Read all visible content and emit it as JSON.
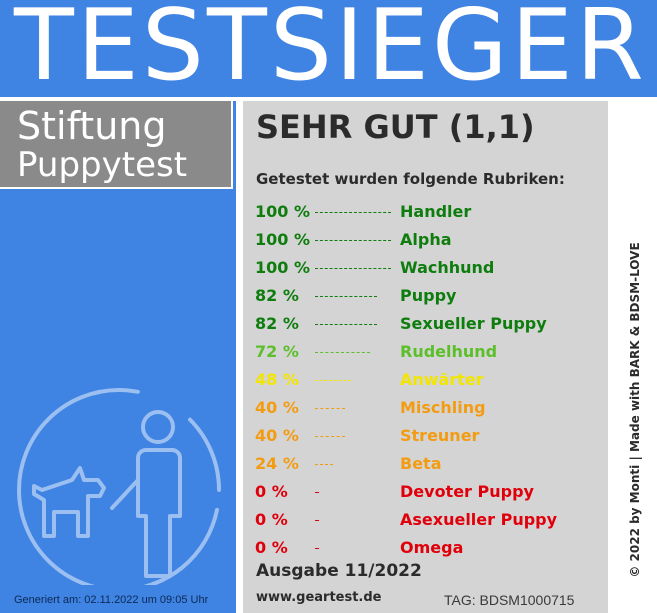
{
  "header": {
    "title": "TESTSIEGER"
  },
  "brand": {
    "line1": "Stiftung",
    "line2": "Puppytest"
  },
  "result": {
    "rating": "SEHR GUT (1,1)",
    "subheading": "Getestet wurden folgende Rubriken:",
    "rubriken": [
      {
        "percent": "100 %",
        "value": 100,
        "name": "Handler",
        "color": "#0e7d0e"
      },
      {
        "percent": "100 %",
        "value": 100,
        "name": "Alpha",
        "color": "#0e7d0e"
      },
      {
        "percent": "100 %",
        "value": 100,
        "name": "Wachhund",
        "color": "#0e7d0e"
      },
      {
        "percent": "82 %",
        "value": 82,
        "name": "Puppy",
        "color": "#0e7d0e"
      },
      {
        "percent": "82 %",
        "value": 82,
        "name": "Sexueller Puppy",
        "color": "#0e7d0e"
      },
      {
        "percent": "72 %",
        "value": 72,
        "name": "Rudelhund",
        "color": "#5cbf2a"
      },
      {
        "percent": "48 %",
        "value": 48,
        "name": "Anwärter",
        "color": "#f2e600"
      },
      {
        "percent": "40 %",
        "value": 40,
        "name": "Mischling",
        "color": "#f39c12"
      },
      {
        "percent": "40 %",
        "value": 40,
        "name": "Streuner",
        "color": "#f39c12"
      },
      {
        "percent": "24 %",
        "value": 24,
        "name": "Beta",
        "color": "#f39c12"
      },
      {
        "percent": "0 %",
        "value": 0,
        "name": "Devoter Puppy",
        "color": "#e0000b"
      },
      {
        "percent": "0 %",
        "value": 0,
        "name": "Asexueller Puppy",
        "color": "#e0000b"
      },
      {
        "percent": "0 %",
        "value": 0,
        "name": "Omega",
        "color": "#e0000b"
      }
    ],
    "issue": "Ausgabe 11/2022",
    "url": "www.geartest.de",
    "tag": "TAG: BDSM1000715"
  },
  "footer": {
    "generated": "Generiert am: 02.11.2022 um 09:05 Uhr"
  },
  "credit": "© 2022 by Monti | Made with BARK & BDSM-LOVE",
  "icons": {
    "emblem": "handler-with-dog-icon"
  },
  "colors": {
    "blue": "#3f83e3",
    "grey_box": "#8a8a8a",
    "panel": "#d4d4d4",
    "text_dark": "#2b2b2b"
  }
}
